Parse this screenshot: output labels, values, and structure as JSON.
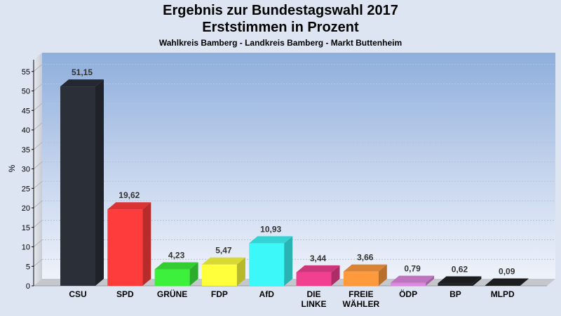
{
  "chart_data": {
    "type": "bar",
    "title": "Ergebnis zur Bundestagswahl 2017",
    "subtitle_line": "Erststimmen in Prozent",
    "subtitle": "Wahlkreis Bamberg - Landkreis Bamberg - Markt Buttenheim",
    "ylabel": "%",
    "xlabel": "",
    "ylim": [
      0,
      58
    ],
    "yticks": [
      0,
      5,
      10,
      15,
      20,
      25,
      30,
      35,
      40,
      45,
      50,
      55
    ],
    "grid": true,
    "categories": [
      [
        "CSU"
      ],
      [
        "SPD"
      ],
      [
        "GRÜNE"
      ],
      [
        "FDP"
      ],
      [
        "AfD"
      ],
      [
        "DIE",
        "LINKE"
      ],
      [
        "FREIE",
        "WÄHLER"
      ],
      [
        "ÖDP"
      ],
      [
        "BP"
      ],
      [
        "MLPD"
      ]
    ],
    "values": [
      51.15,
      19.62,
      4.23,
      5.47,
      10.93,
      3.44,
      3.66,
      0.79,
      0.62,
      0.09
    ],
    "value_labels": [
      "51,15",
      "19,62",
      "4,23",
      "5,47",
      "10,93",
      "3,44",
      "3,66",
      "0,79",
      "0,62",
      "0,09"
    ],
    "colors": [
      "#2b2f38",
      "#ff3c3c",
      "#3cf03c",
      "#ffff3c",
      "#3cf8f8",
      "#f0408f",
      "#ff9a3c",
      "#e088e0",
      "#222226",
      "#222226"
    ]
  }
}
